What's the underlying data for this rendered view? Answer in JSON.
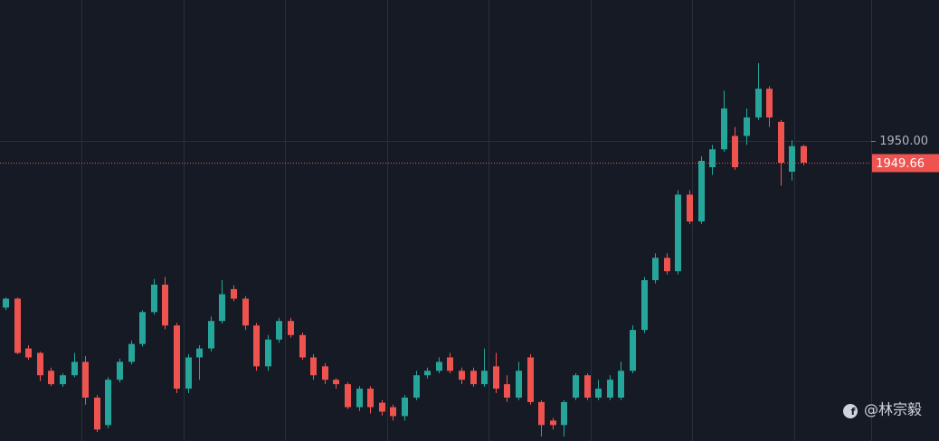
{
  "chart_data": {
    "type": "candlestick",
    "open": [
      1947.39,
      1947.53,
      1946.75,
      1946.68,
      1946.4,
      1946.19,
      1946.33,
      1946.54,
      1945.98,
      1945.55,
      1946.26,
      1946.54,
      1946.82,
      1947.32,
      1947.75,
      1947.11,
      1946.12,
      1946.61,
      1946.75,
      1947.18,
      1947.68,
      1947.53,
      1947.11,
      1946.47,
      1946.89,
      1947.18,
      1946.96,
      1946.61,
      1946.47,
      1946.26,
      1946.19,
      1945.83,
      1946.12,
      1945.9,
      1945.83,
      1945.69,
      1945.98,
      1946.33,
      1946.4,
      1946.61,
      1946.4,
      1946.4,
      1946.19,
      1946.47,
      1946.19,
      1945.98,
      1946.61,
      1945.91,
      1945.62,
      1945.55,
      1945.98,
      1946.33,
      1945.98,
      1945.98,
      1945.98,
      1946.4,
      1947.04,
      1947.82,
      1948.17,
      1947.96,
      1949.16,
      1948.74,
      1949.59,
      1949.87,
      1950.08,
      1950.08,
      1950.37,
      1950.82,
      1950.3,
      1949.52,
      1949.92
    ],
    "high": [
      1947.55,
      1947.55,
      1946.8,
      1946.7,
      1946.45,
      1946.36,
      1946.68,
      1946.63,
      1946.02,
      1946.3,
      1946.59,
      1946.87,
      1947.35,
      1947.84,
      1947.87,
      1947.15,
      1946.66,
      1946.8,
      1947.25,
      1947.82,
      1947.74,
      1947.57,
      1947.15,
      1946.96,
      1947.23,
      1947.23,
      1947.0,
      1946.66,
      1946.52,
      1946.28,
      1946.22,
      1946.16,
      1946.16,
      1945.94,
      1945.87,
      1946.02,
      1946.4,
      1946.45,
      1946.61,
      1946.68,
      1946.45,
      1946.45,
      1946.75,
      1946.68,
      1946.33,
      1946.54,
      1946.66,
      1945.94,
      1945.66,
      1945.94,
      1946.36,
      1946.36,
      1946.26,
      1946.33,
      1946.54,
      1947.11,
      1947.87,
      1948.24,
      1948.24,
      1949.23,
      1949.23,
      1949.76,
      1949.94,
      1950.79,
      1950.22,
      1950.51,
      1951.22,
      1950.86,
      1950.33,
      1950.01,
      1949.94
    ],
    "low": [
      1947.35,
      1946.66,
      1946.57,
      1946.24,
      1946.16,
      1946.15,
      1946.3,
      1945.87,
      1945.44,
      1945.5,
      1946.22,
      1946.5,
      1946.78,
      1947.28,
      1947.05,
      1946.05,
      1946.05,
      1946.26,
      1946.7,
      1947.14,
      1947.49,
      1947.04,
      1946.4,
      1946.4,
      1946.84,
      1946.92,
      1946.57,
      1946.26,
      1946.19,
      1946.12,
      1945.8,
      1945.77,
      1945.73,
      1945.7,
      1945.62,
      1945.62,
      1945.94,
      1946.28,
      1946.36,
      1946.36,
      1946.19,
      1946.15,
      1946.15,
      1946.05,
      1945.91,
      1945.94,
      1945.87,
      1945.37,
      1945.48,
      1945.37,
      1945.94,
      1945.94,
      1945.94,
      1945.94,
      1945.94,
      1946.36,
      1946.99,
      1947.77,
      1947.91,
      1947.91,
      1948.7,
      1948.7,
      1949.47,
      1949.83,
      1949.55,
      1949.94,
      1950.33,
      1950.22,
      1949.3,
      1949.38,
      1949.62
    ],
    "close": [
      1947.53,
      1946.68,
      1946.61,
      1946.33,
      1946.19,
      1946.33,
      1946.54,
      1945.98,
      1945.48,
      1946.26,
      1946.54,
      1946.82,
      1947.32,
      1947.75,
      1947.11,
      1946.12,
      1946.61,
      1946.75,
      1947.18,
      1947.6,
      1947.53,
      1947.11,
      1946.47,
      1946.89,
      1947.18,
      1946.96,
      1946.61,
      1946.33,
      1946.26,
      1946.19,
      1945.83,
      1946.12,
      1945.83,
      1945.76,
      1945.69,
      1945.98,
      1946.33,
      1946.4,
      1946.54,
      1946.4,
      1946.26,
      1946.19,
      1946.4,
      1946.12,
      1945.98,
      1946.4,
      1945.91,
      1945.55,
      1945.55,
      1945.91,
      1946.33,
      1945.98,
      1946.12,
      1946.26,
      1946.4,
      1947.04,
      1947.82,
      1948.17,
      1947.96,
      1949.16,
      1948.74,
      1949.69,
      1949.87,
      1950.51,
      1949.59,
      1950.37,
      1950.82,
      1950.37,
      1949.66,
      1949.92,
      1949.66
    ],
    "up_color": "#26a69a",
    "down_color": "#ef5350",
    "ylim": [
      1945.3,
      1952.21
    ],
    "yticks": [
      {
        "value": 1950,
        "label": "1950.00"
      }
    ],
    "grid": true,
    "last_price": 1949.66,
    "watermark": "@林宗毅"
  }
}
